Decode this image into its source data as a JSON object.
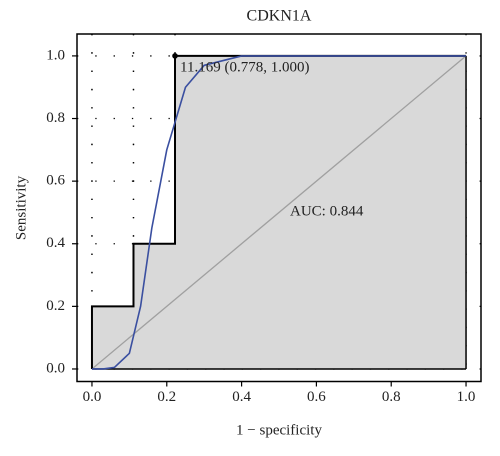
{
  "chart_data": {
    "type": "roc",
    "title": "CDKN1A",
    "x_label": "1 − specificity",
    "y_label": "Sensitivity",
    "xlim": [
      -0.04,
      1.04
    ],
    "ylim": [
      -0.04,
      1.07
    ],
    "xticks": [
      {
        "value": 0,
        "label": "0.0"
      },
      {
        "value": 0.2,
        "label": "0.2"
      },
      {
        "value": 0.4,
        "label": "0.4"
      },
      {
        "value": 0.6,
        "label": "0.6"
      },
      {
        "value": 0.8,
        "label": "0.8"
      },
      {
        "value": 1,
        "label": "1.0"
      }
    ],
    "yticks": [
      {
        "value": 0,
        "label": "0.0"
      },
      {
        "value": 0.2,
        "label": "0.2"
      },
      {
        "value": 0.4,
        "label": "0.4"
      },
      {
        "value": 0.6,
        "label": "0.6"
      },
      {
        "value": 0.8,
        "label": "0.8"
      },
      {
        "value": 1,
        "label": "1.0"
      }
    ],
    "empirical": {
      "x": [
        0,
        0,
        0.111,
        0.111,
        0.222,
        0.222,
        1
      ],
      "y": [
        0,
        0.2,
        0.2,
        0.4,
        0.4,
        1.0,
        1.0
      ],
      "color": "#000000",
      "fill": "#d9d9d9"
    },
    "fitted": {
      "x": [
        0,
        0.03,
        0.06,
        0.1,
        0.13,
        0.16,
        0.2,
        0.25,
        0.3,
        0.4,
        1
      ],
      "y": [
        0,
        0,
        0.005,
        0.05,
        0.2,
        0.45,
        0.7,
        0.9,
        0.97,
        1.0,
        1.0
      ],
      "color": "#3a4fa0"
    },
    "cutoff": {
      "x": 0.222,
      "y": 1.0,
      "label": "11.169 (0.778, 1.000)"
    },
    "annotation": "AUC: 0.844"
  }
}
